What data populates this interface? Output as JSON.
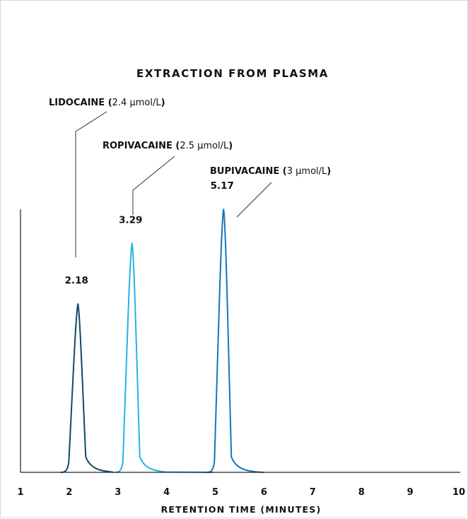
{
  "chart_data": {
    "type": "line",
    "title": "EXTRACTION FROM PLASMA",
    "xlabel": "RETENTION TIME (MINUTES)",
    "ylabel": "",
    "xlim": [
      1,
      10
    ],
    "x_ticks": [
      "1",
      "2",
      "3",
      "4",
      "5",
      "6",
      "7",
      "8",
      "9",
      "10"
    ],
    "ylim": [
      0,
      1
    ],
    "grid": false,
    "colors": {
      "lidocaine": "#12476a",
      "ropivacaine": "#26b3e0",
      "bupivacaine": "#1577b8"
    },
    "peaks": [
      {
        "key": "lidocaine",
        "name_bold": "LIDOCAINE",
        "conc": "2.4 µmol/L",
        "open": "(",
        "close": ")",
        "retention_time": 2.18,
        "label": "2.18",
        "height": 0.64
      },
      {
        "key": "ropivacaine",
        "name_bold": "ROPIVACAINE",
        "conc": "2.5 µmol/L",
        "open": "(",
        "close": ")",
        "retention_time": 3.29,
        "label": "3.29",
        "height": 0.87
      },
      {
        "key": "bupivacaine",
        "name_bold": "BUPIVACAINE",
        "conc": "3 µmol/L",
        "open": "(",
        "close": ")",
        "retention_time": 5.17,
        "label": "5.17",
        "height": 1.0
      }
    ]
  }
}
